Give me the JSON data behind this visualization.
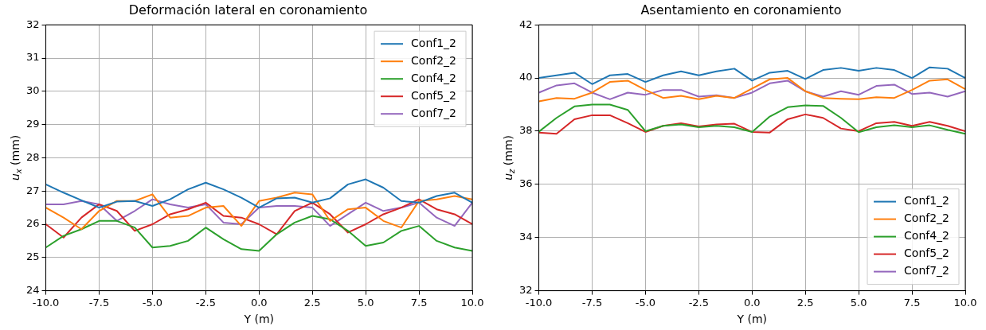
{
  "chart_data": [
    {
      "type": "line",
      "title": "Deformación lateral en coronamiento",
      "xlabel": "Y (m)",
      "ylabel": "u$_{x}$ (mm)",
      "x": [
        -10,
        -9.17,
        -8.33,
        -7.5,
        -6.67,
        -5.83,
        -5,
        -4.17,
        -3.33,
        -2.5,
        -1.67,
        -0.83,
        0,
        0.83,
        1.67,
        2.5,
        3.33,
        4.17,
        5,
        5.83,
        6.67,
        7.5,
        8.33,
        9.17,
        10
      ],
      "series": [
        {
          "name": "Conf1_2",
          "color": "#1f77b4",
          "values": [
            27.2,
            26.95,
            26.72,
            26.5,
            26.68,
            26.7,
            26.55,
            26.75,
            27.05,
            27.25,
            27.05,
            26.8,
            26.5,
            26.78,
            26.8,
            26.65,
            26.78,
            27.2,
            27.35,
            27.1,
            26.7,
            26.65,
            26.85,
            26.95,
            26.65
          ]
        },
        {
          "name": "Conf2_2",
          "color": "#ff7f0e",
          "values": [
            26.5,
            26.2,
            25.85,
            26.4,
            26.7,
            26.7,
            26.9,
            26.2,
            26.25,
            26.5,
            26.55,
            25.95,
            26.7,
            26.8,
            26.95,
            26.9,
            26.1,
            26.45,
            26.5,
            26.1,
            25.9,
            26.7,
            26.75,
            26.85,
            26.75
          ]
        },
        {
          "name": "Conf4_2",
          "color": "#2ca02c",
          "values": [
            25.3,
            25.65,
            25.85,
            26.1,
            26.1,
            25.9,
            25.3,
            25.35,
            25.5,
            25.9,
            25.55,
            25.25,
            25.2,
            25.7,
            26.05,
            26.25,
            26.15,
            25.8,
            25.35,
            25.45,
            25.8,
            25.95,
            25.5,
            25.3,
            25.2
          ]
        },
        {
          "name": "Conf5_2",
          "color": "#d62728",
          "values": [
            26.0,
            25.6,
            26.2,
            26.6,
            26.4,
            25.8,
            26.0,
            26.3,
            26.45,
            26.65,
            26.25,
            26.2,
            26.0,
            25.7,
            26.4,
            26.65,
            26.3,
            25.75,
            26.0,
            26.3,
            26.5,
            26.75,
            26.45,
            26.3,
            26.0
          ]
        },
        {
          "name": "Conf7_2",
          "color": "#9467bd",
          "values": [
            26.6,
            26.6,
            26.7,
            26.6,
            26.1,
            26.4,
            26.75,
            26.6,
            26.5,
            26.6,
            26.05,
            26.0,
            26.5,
            26.55,
            26.55,
            26.5,
            25.95,
            26.3,
            26.65,
            26.4,
            26.5,
            26.65,
            26.2,
            25.95,
            26.65
          ]
        }
      ],
      "xlim": [
        -10,
        10
      ],
      "xticks": [
        {
          "value": -10,
          "label": "-10.0"
        },
        {
          "value": -7.5,
          "label": "-7.5"
        },
        {
          "value": -5,
          "label": "-5.0"
        },
        {
          "value": -2.5,
          "label": "-2.5"
        },
        {
          "value": 0,
          "label": "0.0"
        },
        {
          "value": 2.5,
          "label": "2.5"
        },
        {
          "value": 5,
          "label": "5.0"
        },
        {
          "value": 7.5,
          "label": "7.5"
        },
        {
          "value": 10,
          "label": "10.0"
        }
      ],
      "ylim": [
        24,
        32
      ],
      "yticks": [
        24,
        25,
        26,
        27,
        28,
        29,
        30,
        31,
        32
      ],
      "grid": true,
      "legend": "top right",
      "line_style": "solid"
    },
    {
      "type": "line",
      "title": "Asentamiento en coronamiento",
      "xlabel": "Y (m)",
      "ylabel": "u$_{z}$ (mm)",
      "x": [
        -10,
        -9.17,
        -8.33,
        -7.5,
        -6.67,
        -5.83,
        -5,
        -4.17,
        -3.33,
        -2.5,
        -1.67,
        -0.83,
        0,
        0.83,
        1.67,
        2.5,
        3.33,
        4.17,
        5,
        5.83,
        6.67,
        7.5,
        8.33,
        9.17,
        10
      ],
      "series": [
        {
          "name": "Conf1_2",
          "color": "#1f77b4",
          "values": [
            40.0,
            40.1,
            40.2,
            39.77,
            40.1,
            40.15,
            39.85,
            40.1,
            40.25,
            40.1,
            40.25,
            40.35,
            39.9,
            40.2,
            40.27,
            39.96,
            40.3,
            40.38,
            40.27,
            40.38,
            40.3,
            40.0,
            40.4,
            40.35,
            40.0
          ]
        },
        {
          "name": "Conf2_2",
          "color": "#ff7f0e",
          "values": [
            39.12,
            39.25,
            39.22,
            39.45,
            39.85,
            39.9,
            39.55,
            39.25,
            39.33,
            39.2,
            39.33,
            39.25,
            39.6,
            39.95,
            40.0,
            39.5,
            39.25,
            39.22,
            39.2,
            39.28,
            39.25,
            39.55,
            39.9,
            39.95,
            39.58
          ]
        },
        {
          "name": "Conf4_2",
          "color": "#2ca02c",
          "values": [
            37.98,
            38.5,
            38.93,
            39.0,
            39.0,
            38.8,
            38.0,
            38.2,
            38.25,
            38.15,
            38.2,
            38.15,
            37.97,
            38.55,
            38.9,
            38.97,
            38.95,
            38.5,
            37.96,
            38.15,
            38.22,
            38.15,
            38.22,
            38.05,
            37.9
          ]
        },
        {
          "name": "Conf5_2",
          "color": "#d62728",
          "values": [
            37.95,
            37.9,
            38.45,
            38.6,
            38.6,
            38.3,
            37.97,
            38.2,
            38.3,
            38.18,
            38.25,
            38.28,
            37.97,
            37.95,
            38.45,
            38.63,
            38.5,
            38.1,
            38.0,
            38.3,
            38.35,
            38.2,
            38.35,
            38.2,
            38.0
          ]
        },
        {
          "name": "Conf7_2",
          "color": "#9467bd",
          "values": [
            39.45,
            39.72,
            39.8,
            39.45,
            39.2,
            39.45,
            39.37,
            39.55,
            39.55,
            39.3,
            39.35,
            39.25,
            39.45,
            39.8,
            39.9,
            39.5,
            39.3,
            39.5,
            39.37,
            39.7,
            39.75,
            39.4,
            39.45,
            39.3,
            39.5
          ]
        }
      ],
      "xlim": [
        -10,
        10
      ],
      "xticks": [
        {
          "value": -10,
          "label": "-10.0"
        },
        {
          "value": -7.5,
          "label": "-7.5"
        },
        {
          "value": -5,
          "label": "-5.0"
        },
        {
          "value": -2.5,
          "label": "-2.5"
        },
        {
          "value": 0,
          "label": "0.0"
        },
        {
          "value": 2.5,
          "label": "2.5"
        },
        {
          "value": 5,
          "label": "5.0"
        },
        {
          "value": 7.5,
          "label": "7.5"
        },
        {
          "value": 10,
          "label": "10.0"
        }
      ],
      "ylim": [
        32,
        42
      ],
      "yticks": [
        32,
        34,
        36,
        38,
        40,
        42
      ],
      "grid": true,
      "legend": "bottom right",
      "line_style": "solid"
    }
  ]
}
